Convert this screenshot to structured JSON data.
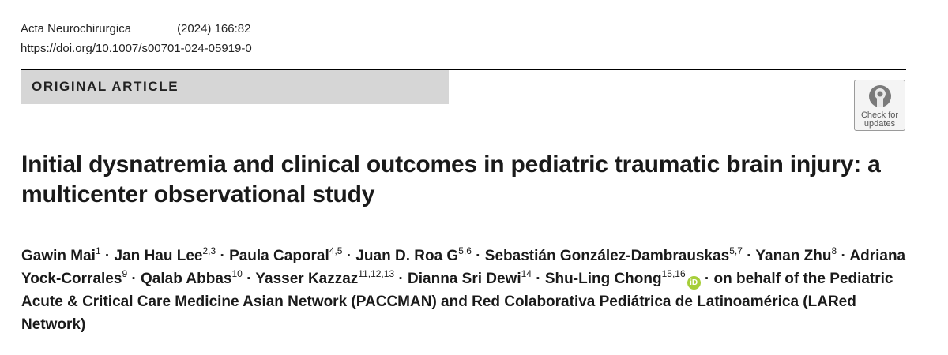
{
  "journal": {
    "name": "Acta Neurochirurgica",
    "citation": "(2024) 166:82",
    "doi": "https://doi.org/10.1007/s00701-024-05919-0"
  },
  "article_type": "ORIGINAL ARTICLE",
  "check_for_updates": {
    "line1": "Check for",
    "line2": "updates"
  },
  "title": "Initial dysnatremia and clinical outcomes in pediatric traumatic brain injury: a multicenter observational study",
  "authors": [
    {
      "name": "Gawin Mai",
      "aff": "1"
    },
    {
      "name": "Jan Hau Lee",
      "aff": "2,3"
    },
    {
      "name": "Paula Caporal",
      "aff": "4,5"
    },
    {
      "name": "Juan D. Roa G",
      "aff": "5,6"
    },
    {
      "name": "Sebastián González-Dambrauskas",
      "aff": "5,7"
    },
    {
      "name": "Yanan Zhu",
      "aff": "8"
    },
    {
      "name": "Adriana Yock-Corrales",
      "aff": "9"
    },
    {
      "name": "Qalab Abbas",
      "aff": "10"
    },
    {
      "name": "Yasser Kazzaz",
      "aff": "11,12,13"
    },
    {
      "name": "Dianna Sri Dewi",
      "aff": "14"
    },
    {
      "name": "Shu-Ling Chong",
      "aff": "15,16",
      "orcid": "iD"
    }
  ],
  "separator": " · ",
  "on_behalf": "on behalf of the Pediatric Acute & Critical Care Medicine Asian Network (PACCMAN) and Red Colaborativa Pediátrica de Latinoamérica (LARed Network)"
}
